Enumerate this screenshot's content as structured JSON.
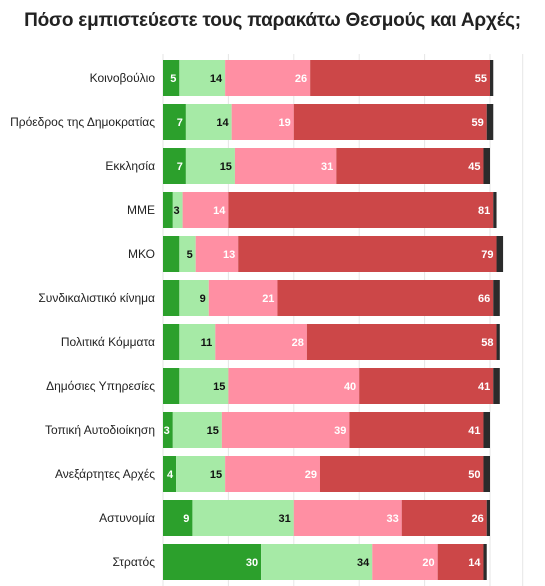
{
  "chart_data": {
    "type": "bar",
    "orientation": "horizontal",
    "stacked": true,
    "title": "Πόσο εμπιστεύεστε τους παρακάτω Θεσμούς και Αρχές;",
    "categories": [
      "Κοινοβούλιο",
      "Πρόεδρος της Δημοκρατίας",
      "Εκκλησία",
      "ΜΜΕ",
      "ΜΚΟ",
      "Συνδικαλιστικό κίνημα",
      "Πολιτικά Κόμματα",
      "Δημόσιες Υπηρεσίες",
      "Τοπική Αυτοδιοίκηση",
      "Ανεξάρτητες Αρχές",
      "Αστυνομία",
      "Στρατός"
    ],
    "series": [
      {
        "values": [
          5,
          7,
          7,
          3,
          5,
          5,
          5,
          5,
          3,
          4,
          9,
          30
        ],
        "color": "#2ca02c",
        "label_color": "#ffffff"
      },
      {
        "values": [
          14,
          14,
          15,
          3,
          5,
          9,
          11,
          15,
          15,
          15,
          31,
          34
        ],
        "color": "#a6eaa6",
        "label_color": "#111111"
      },
      {
        "values": [
          26,
          19,
          31,
          14,
          13,
          21,
          28,
          40,
          39,
          29,
          33,
          20
        ],
        "color": "#ff8fa3",
        "label_color": "#ffffff"
      },
      {
        "values": [
          55,
          59,
          45,
          81,
          79,
          66,
          58,
          41,
          41,
          50,
          26,
          14
        ],
        "color": "#cc4748",
        "label_color": "#ffffff"
      },
      {
        "values": [
          1,
          2,
          2,
          1,
          2,
          2,
          1,
          2,
          2,
          2,
          1,
          1
        ],
        "color": "#2b2b2b",
        "label_color": "#ffffff"
      }
    ],
    "shown_labels": [
      [
        "5",
        "14",
        "26",
        "55",
        ""
      ],
      [
        "7",
        "14",
        "19",
        "59",
        ""
      ],
      [
        "7",
        "15",
        "31",
        "45",
        ""
      ],
      [
        "",
        "3",
        "14",
        "81",
        ""
      ],
      [
        "",
        "5",
        "13",
        "79",
        ""
      ],
      [
        "",
        "9",
        "21",
        "66",
        ""
      ],
      [
        "",
        "11",
        "28",
        "58",
        ""
      ],
      [
        "",
        "15",
        "40",
        "41",
        ""
      ],
      [
        "3",
        "15",
        "39",
        "41",
        ""
      ],
      [
        "4",
        "15",
        "29",
        "50",
        ""
      ],
      [
        "9",
        "31",
        "33",
        "26",
        ""
      ],
      [
        "30",
        "34",
        "20",
        "14",
        ""
      ]
    ],
    "xlim": [
      0,
      100
    ],
    "grid": true
  }
}
